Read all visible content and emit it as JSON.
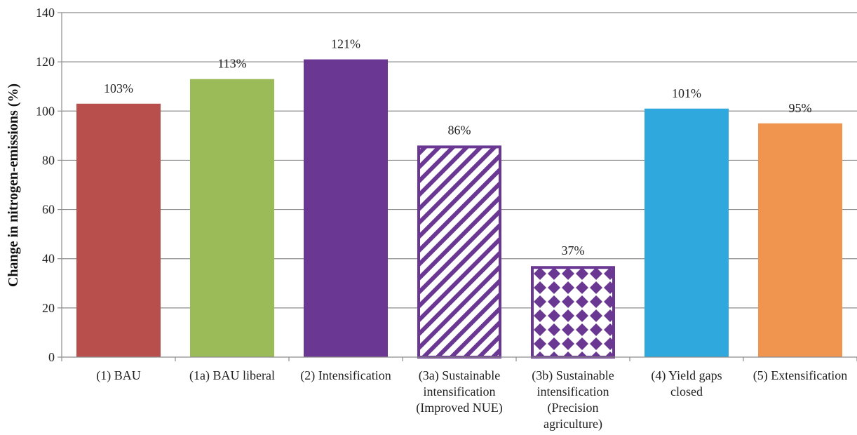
{
  "chart_data": {
    "type": "bar",
    "title": "",
    "xlabel": "",
    "ylabel": "Change in nitrogen-emissions (%)",
    "ylim": [
      0,
      140
    ],
    "yticks": [
      0,
      20,
      40,
      60,
      80,
      100,
      120,
      140
    ],
    "grid": true,
    "legend": "none",
    "categories": [
      [
        "(1) BAU"
      ],
      [
        "(1a) BAU liberal"
      ],
      [
        "(2) Intensification"
      ],
      [
        "(3a) Sustainable",
        "intensification",
        "(Improved NUE)"
      ],
      [
        "(3b) Sustainable",
        "intensification",
        "(Precision",
        "agriculture)"
      ],
      [
        "(4) Yield gaps",
        "closed"
      ],
      [
        "(5) Extensification"
      ]
    ],
    "values": [
      103,
      113,
      121,
      86,
      37,
      101,
      95
    ],
    "value_labels": [
      "103%",
      "113%",
      "121%",
      "86%",
      "37%",
      "101%",
      "95%"
    ],
    "fills": [
      "solid",
      "solid",
      "solid",
      "diagonal-hatch",
      "diamond-pattern",
      "solid",
      "solid"
    ],
    "colors": [
      "#b94f4d",
      "#9bbb59",
      "#6a3893",
      "#6a3893",
      "#6a3893",
      "#2ea8dd",
      "#ef9550"
    ]
  }
}
